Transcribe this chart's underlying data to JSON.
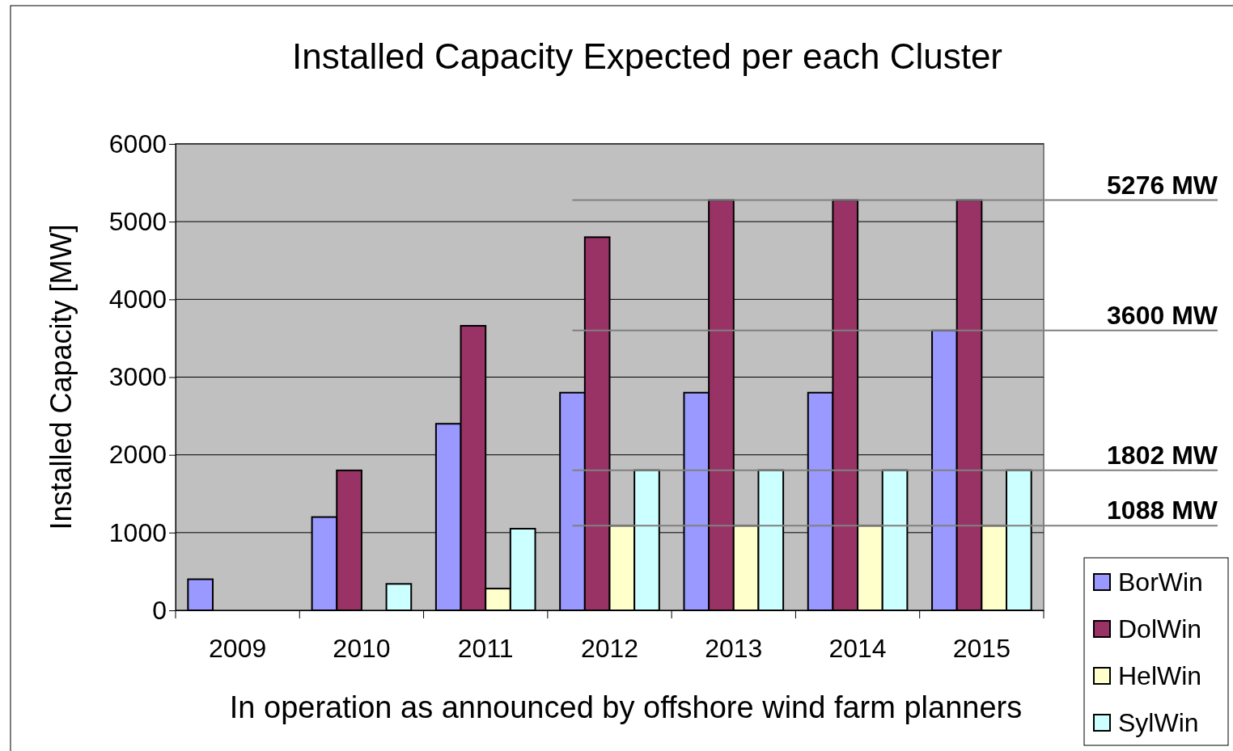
{
  "chart_data": {
    "type": "bar",
    "title": "Installed Capacity Expected per each Cluster",
    "xlabel": "In operation as announced by offshore wind farm planners",
    "ylabel": "Installed Capacity [MW]",
    "categories": [
      "2009",
      "2010",
      "2011",
      "2012",
      "2013",
      "2014",
      "2015"
    ],
    "series": [
      {
        "name": "BorWin",
        "color": "#9999ff",
        "values": [
          400,
          1200,
          2400,
          2800,
          2800,
          2800,
          3600
        ]
      },
      {
        "name": "DolWin",
        "color": "#993366",
        "values": [
          null,
          1800,
          3660,
          4800,
          5276,
          5276,
          5276
        ]
      },
      {
        "name": "HelWin",
        "color": "#ffffcc",
        "values": [
          null,
          null,
          280,
          1088,
          1088,
          1088,
          1088
        ]
      },
      {
        "name": "SylWin",
        "color": "#ccffff",
        "values": [
          null,
          340,
          1050,
          1802,
          1802,
          1802,
          1802
        ]
      }
    ],
    "ylim": [
      0,
      6000
    ],
    "yticks": [
      0,
      1000,
      2000,
      3000,
      4000,
      5000,
      6000
    ],
    "grid": "y",
    "legend": "bottom right",
    "ref_lines": [
      {
        "axis": "y",
        "value": 5276,
        "label": "5276 MW",
        "color": "#808080"
      },
      {
        "axis": "y",
        "value": 3600,
        "label": "3600 MW",
        "color": "#808080"
      },
      {
        "axis": "y",
        "value": 1802,
        "label": "1802 MW",
        "color": "#808080"
      },
      {
        "axis": "y",
        "value": 1088,
        "label": "1088 MW",
        "color": "#808080"
      }
    ]
  }
}
